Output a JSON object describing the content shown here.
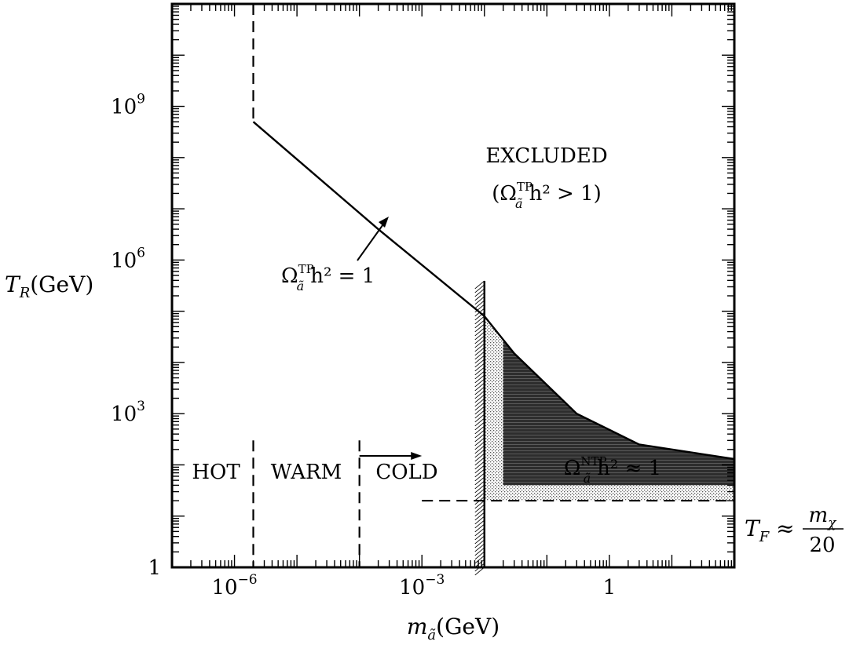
{
  "chart_data": {
    "type": "line",
    "xlabel": {
      "base": "m",
      "sub": "ã",
      "unit": "(GeV)"
    },
    "ylabel": {
      "base": "T",
      "sub": "R",
      "unit": "(GeV)"
    },
    "x_scale": "log",
    "y_scale": "log",
    "xlim": [
      1e-07,
      100
    ],
    "ylim": [
      1,
      100000000000.0
    ],
    "x_ticks": [
      {
        "value": 1e-06,
        "base": "10",
        "exp": "−6"
      },
      {
        "value": 0.001,
        "base": "10",
        "exp": "−3"
      },
      {
        "value": 1,
        "base": "1",
        "exp": ""
      }
    ],
    "y_ticks": [
      {
        "value": 1,
        "base": "1",
        "exp": ""
      },
      {
        "value": 1000,
        "base": "10",
        "exp": "3"
      },
      {
        "value": 1000000.0,
        "base": "10",
        "exp": "6"
      },
      {
        "value": 1000000000.0,
        "base": "10",
        "exp": "9"
      }
    ],
    "series": [
      {
        "style": "solid",
        "points": [
          [
            2e-06,
            500000000.0
          ],
          [
            0.0002,
            4000000.0
          ],
          [
            0.01,
            80000.0
          ],
          [
            0.03,
            15000.0
          ],
          [
            0.3,
            1000.0
          ],
          [
            3,
            250
          ],
          [
            100,
            130
          ]
        ]
      },
      {
        "style": "dashed",
        "points": [
          [
            2e-06,
            100000000000.0
          ],
          [
            2e-06,
            500000000.0
          ]
        ]
      },
      {
        "style": "dashed",
        "points": [
          [
            0.001,
            20
          ],
          [
            100,
            20
          ]
        ]
      }
    ],
    "regions": {
      "dense_shaded": {
        "x_min": 0.02,
        "x_max": 100,
        "y_min": 40
      },
      "dotted": {
        "x_min": 0.01,
        "x_max": 100,
        "y_min": 20
      },
      "hatch_boundary_x": 0.01,
      "hot_warm_boundary_x": 2e-06,
      "warm_cold_boundary_x": 0.0001,
      "cold_arrow": {
        "from": [
          0.0001,
          150
        ],
        "to": [
          0.001,
          150
        ]
      }
    },
    "annotations": {
      "excluded": "EXCLUDED",
      "excluded_condition": {
        "base": "(Ω",
        "sub": "ã",
        "sup": "TP",
        "rest": "h² > 1)"
      },
      "tp_curve": {
        "base": "Ω",
        "sub": "ã",
        "sup": "TP",
        "rest": "h² = 1"
      },
      "ntp_region": {
        "base": "Ω",
        "sub": "ã",
        "sup": "NTP",
        "rest": "h² ≈ 1"
      },
      "hot": "HOT",
      "warm": "WARM",
      "cold": "COLD",
      "freezeout": {
        "lhs_base": "T",
        "lhs_sub": "F",
        "approx": "≈",
        "num_base": "m",
        "num_sub": "χ",
        "den": "20"
      }
    }
  }
}
